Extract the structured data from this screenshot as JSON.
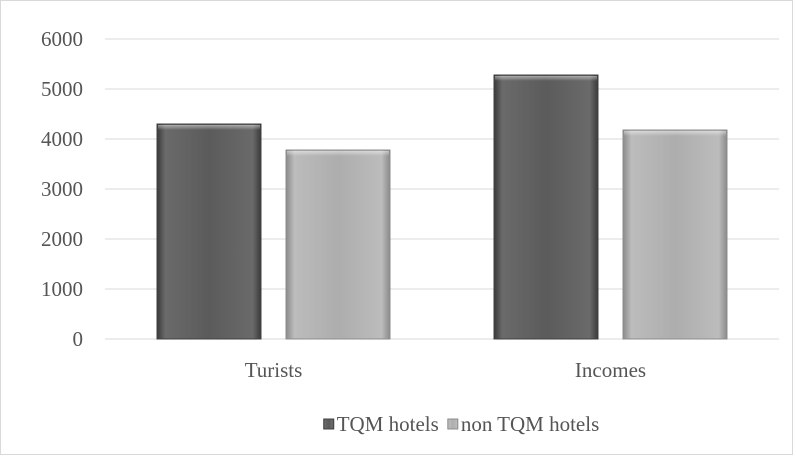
{
  "chart_data": {
    "type": "bar",
    "title": "",
    "xlabel": "",
    "ylabel": "",
    "categories": [
      "Turists",
      "Incomes"
    ],
    "series": [
      {
        "name": "TQM hotels",
        "values": [
          4300,
          5280
        ],
        "color": "#5b5b5b"
      },
      {
        "name": "non TQM hotels",
        "values": [
          3780,
          4180
        ],
        "color": "#a9a9a9"
      }
    ],
    "ylim": [
      0,
      6000
    ],
    "yticks": [
      "0",
      "1000",
      "2000",
      "3000",
      "4000",
      "5000",
      "6000"
    ],
    "grid": true,
    "legend_position": "bottom"
  }
}
